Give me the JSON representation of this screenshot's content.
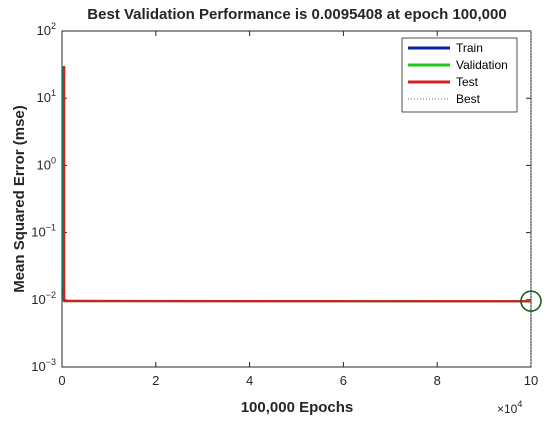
{
  "chart_data": {
    "type": "line",
    "title": "Best Validation Performance is 0.0095408 at epoch 100,000",
    "xlabel": "100,000 Epochs",
    "ylabel": "Mean Squared Error  (mse)",
    "x_multiplier": "×10",
    "x_multiplier_exp": "4",
    "xlim": [
      0,
      100000
    ],
    "ylim": [
      0.001,
      100
    ],
    "yscale": "log",
    "grid": false,
    "legend_position": "top-right",
    "x_ticks": [
      {
        "value": 0,
        "label": "0"
      },
      {
        "value": 20000,
        "label": "2"
      },
      {
        "value": 40000,
        "label": "4"
      },
      {
        "value": 60000,
        "label": "6"
      },
      {
        "value": 80000,
        "label": "8"
      },
      {
        "value": 100000,
        "label": "10"
      }
    ],
    "y_ticks": [
      {
        "value": 100,
        "base": "10",
        "exp": "2"
      },
      {
        "value": 10,
        "base": "10",
        "exp": "1"
      },
      {
        "value": 1,
        "base": "10",
        "exp": "0"
      },
      {
        "value": 0.1,
        "base": "10",
        "exp": "−1"
      },
      {
        "value": 0.01,
        "base": "10",
        "exp": "−2"
      },
      {
        "value": 0.001,
        "base": "10",
        "exp": "−3"
      }
    ],
    "series": [
      {
        "name": "Train",
        "color": "#0b22a0",
        "style": "solid",
        "x": [
          0,
          50,
          150,
          400,
          1000,
          100000
        ],
        "y": [
          30,
          0.2,
          0.02,
          0.0096,
          0.0096,
          0.0095
        ]
      },
      {
        "name": "Validation",
        "color": "#1ec71e",
        "style": "solid",
        "x": [
          0,
          50,
          150,
          400,
          1000,
          100000
        ],
        "y": [
          30,
          0.2,
          0.02,
          0.0096,
          0.0096,
          0.0095408
        ]
      },
      {
        "name": "Test",
        "color": "#d41f1f",
        "style": "solid",
        "x": [
          0,
          50,
          150,
          400,
          1000,
          100000
        ],
        "y": [
          30,
          0.2,
          0.02,
          0.0096,
          0.0096,
          0.0095
        ]
      },
      {
        "name": "Best",
        "color": "#4a8a6a",
        "style": "dotted"
      }
    ],
    "best_marker": {
      "x": 100000,
      "y": 0.0095408,
      "color": "#1b5e20"
    }
  }
}
